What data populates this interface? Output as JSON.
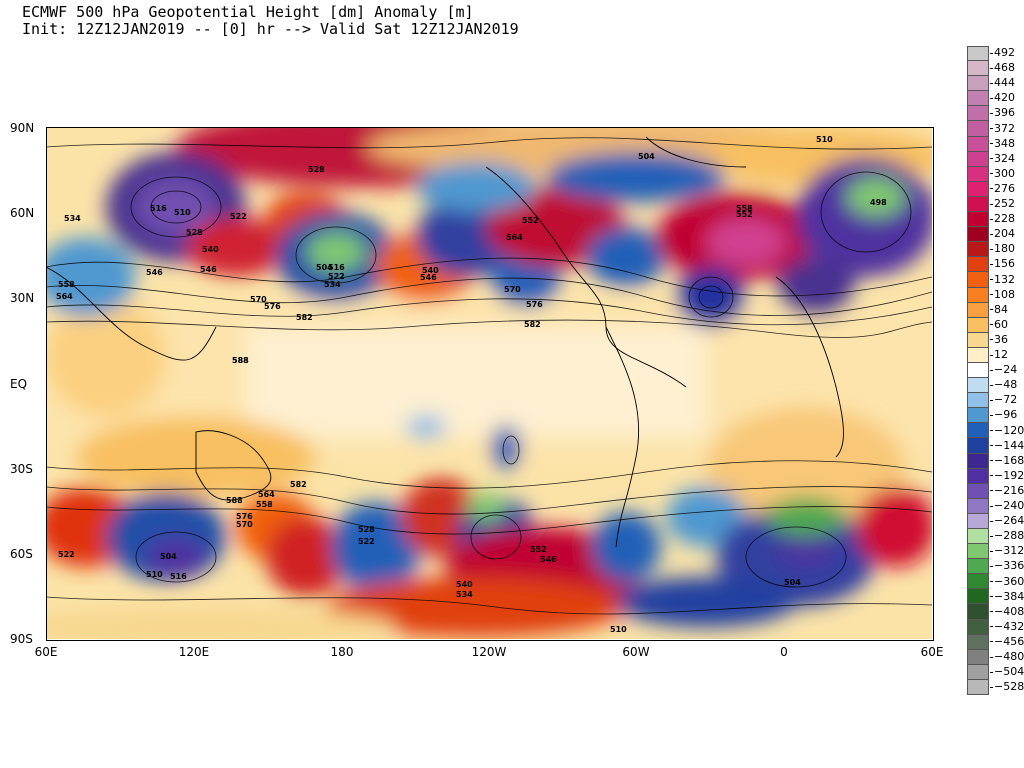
{
  "title": {
    "line1": "ECMWF 500 hPa Geopotential Height [dm] Anomaly [m]",
    "line2": "Init: 12Z12JAN2019 -- [0] hr --> Valid Sat 12Z12JAN2019"
  },
  "axes": {
    "y_ticks": [
      "90N",
      "60N",
      "30N",
      "EQ",
      "30S",
      "60S",
      "90S"
    ],
    "x_ticks": [
      "60E",
      "120E",
      "180",
      "120W",
      "60W",
      "0",
      "60E"
    ]
  },
  "colorbar": {
    "labels": [
      "492",
      "468",
      "444",
      "420",
      "396",
      "372",
      "348",
      "324",
      "300",
      "276",
      "252",
      "228",
      "204",
      "180",
      "156",
      "132",
      "108",
      "84",
      "60",
      "36",
      "12",
      "−24",
      "−48",
      "−72",
      "−96",
      "−120",
      "−144",
      "−168",
      "−192",
      "−216",
      "−240",
      "−264",
      "−288",
      "−312",
      "−336",
      "−360",
      "−384",
      "−408",
      "−432",
      "−456",
      "−480",
      "−504",
      "−528"
    ],
    "colors": [
      "#c8c8c8",
      "#d4b8c8",
      "#c8a0bc",
      "#c080b0",
      "#c070a8",
      "#c060a0",
      "#c85098",
      "#d04090",
      "#d83080",
      "#e02070",
      "#d01050",
      "#c00030",
      "#a00020",
      "#b81818",
      "#e04010",
      "#f06010",
      "#f88020",
      "#f8a040",
      "#f8c060",
      "#f8d890",
      "#fff0c8",
      "#ffffff",
      "#c0dcf0",
      "#90c0e8",
      "#5098d0",
      "#2060b8",
      "#2040a0",
      "#3c2890",
      "#5030a0",
      "#7050b0",
      "#9078c0",
      "#b8a8d8",
      "#b0e0a0",
      "#80c870",
      "#50a850",
      "#308830",
      "#206820",
      "#305030",
      "#406040",
      "#607060",
      "#808080",
      "#a0a0a0",
      "#b8b8b8"
    ]
  },
  "contour_labels": [
    "528",
    "510",
    "504",
    "516",
    "510",
    "534",
    "522",
    "546",
    "540",
    "528",
    "546",
    "552",
    "558",
    "564",
    "570",
    "576",
    "582",
    "588",
    "504",
    "516",
    "522",
    "534",
    "540",
    "546",
    "552",
    "558",
    "564",
    "570",
    "576",
    "582",
    "588",
    "498",
    "528",
    "522",
    "504",
    "510",
    "516",
    "534",
    "540",
    "546",
    "552",
    "558",
    "564",
    "570",
    "576",
    "582",
    "588",
    "522",
    "510",
    "504"
  ]
}
